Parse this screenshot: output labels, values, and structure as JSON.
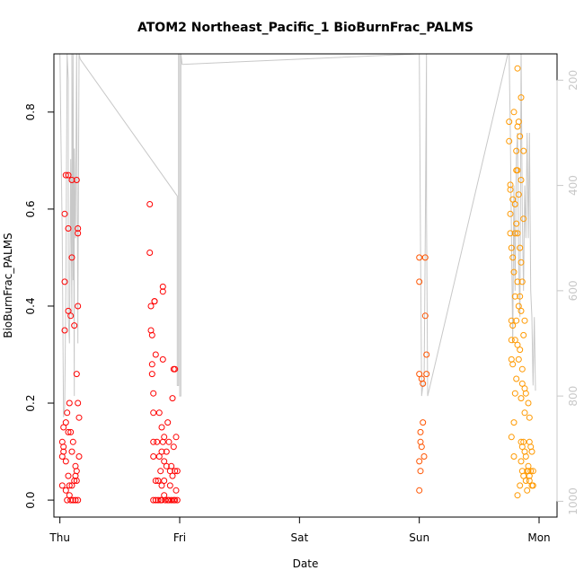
{
  "chart_data": {
    "type": "scatter",
    "title": "ATOM2 Northeast_Pacific_1 BioBurnFrac_PALMS",
    "xlabel": "Date",
    "ylabel": "BioBurnFrac_PALMS",
    "x_ticks": [
      "Thu",
      "Fri",
      "Sat",
      "Sun",
      "Mon"
    ],
    "xlim": [
      -0.05,
      4.15
    ],
    "ylim": [
      -0.035,
      0.92
    ],
    "y_ticks": [
      0.0,
      0.2,
      0.4,
      0.6,
      0.8
    ],
    "y2_ticks": [
      200,
      400,
      600,
      800,
      1000
    ],
    "y2_lim": [
      1030,
      150
    ],
    "y2_inverted": true,
    "grid": false,
    "colors": {
      "series_start": "#ff0000",
      "series_end": "#ff9900",
      "altitude_line": "#c8c8c8",
      "axis": "#000000"
    },
    "series": [
      {
        "points": [
          [
            0.02,
            0.09
          ],
          [
            0.02,
            0.03
          ],
          [
            0.02,
            0.12
          ],
          [
            0.03,
            0.15
          ],
          [
            0.03,
            0.1
          ],
          [
            0.03,
            0.11
          ],
          [
            0.04,
            0.35
          ],
          [
            0.04,
            0.45
          ],
          [
            0.04,
            0.59
          ],
          [
            0.05,
            0.67
          ],
          [
            0.05,
            0.16
          ],
          [
            0.05,
            0.08
          ],
          [
            0.05,
            0.02
          ],
          [
            0.06,
            0.18
          ],
          [
            0.06,
            0.0
          ],
          [
            0.07,
            0.67
          ],
          [
            0.07,
            0.56
          ],
          [
            0.07,
            0.39
          ],
          [
            0.07,
            0.14
          ],
          [
            0.07,
            0.05
          ],
          [
            0.08,
            0.2
          ],
          [
            0.08,
            0.03
          ],
          [
            0.08,
            0.01
          ],
          [
            0.09,
            0.38
          ],
          [
            0.09,
            0.14
          ],
          [
            0.09,
            0.0
          ],
          [
            0.1,
            0.66
          ],
          [
            0.1,
            0.5
          ],
          [
            0.1,
            0.1
          ],
          [
            0.1,
            0.03
          ],
          [
            0.11,
            0.12
          ],
          [
            0.11,
            0.0
          ],
          [
            0.12,
            0.04
          ],
          [
            0.12,
            0.36
          ],
          [
            0.13,
            0.07
          ],
          [
            0.13,
            0.0
          ],
          [
            0.13,
            0.05
          ],
          [
            0.14,
            0.26
          ],
          [
            0.14,
            0.66
          ],
          [
            0.14,
            0.06
          ],
          [
            0.14,
            0.04
          ],
          [
            0.15,
            0.4
          ],
          [
            0.15,
            0.55
          ],
          [
            0.15,
            0.2
          ],
          [
            0.15,
            0.0
          ],
          [
            0.15,
            0.56
          ],
          [
            0.16,
            0.17
          ],
          [
            0.16,
            0.09
          ],
          [
            0.75,
            0.61
          ],
          [
            0.75,
            0.51
          ],
          [
            0.76,
            0.4
          ],
          [
            0.76,
            0.35
          ],
          [
            0.77,
            0.34
          ],
          [
            0.77,
            0.28
          ],
          [
            0.77,
            0.26
          ],
          [
            0.78,
            0.22
          ],
          [
            0.78,
            0.18
          ],
          [
            0.78,
            0.12
          ],
          [
            0.78,
            0.09
          ],
          [
            0.78,
            0.0
          ],
          [
            0.79,
            0.41
          ],
          [
            0.79,
            0.41
          ],
          [
            0.8,
            0.3
          ],
          [
            0.8,
            0.04
          ],
          [
            0.8,
            0.0
          ],
          [
            0.81,
            0.12
          ],
          [
            0.82,
            0.04
          ],
          [
            0.82,
            0.0
          ],
          [
            0.83,
            0.18
          ],
          [
            0.83,
            0.09
          ],
          [
            0.84,
            0.06
          ],
          [
            0.84,
            0.0
          ],
          [
            0.85,
            0.15
          ],
          [
            0.85,
            0.1
          ],
          [
            0.85,
            0.03
          ],
          [
            0.85,
            0.0
          ],
          [
            0.86,
            0.44
          ],
          [
            0.86,
            0.43
          ],
          [
            0.86,
            0.29
          ],
          [
            0.86,
            0.12
          ],
          [
            0.87,
            0.13
          ],
          [
            0.87,
            0.08
          ],
          [
            0.87,
            0.04
          ],
          [
            0.87,
            0.01
          ],
          [
            0.88,
            0.0
          ],
          [
            0.89,
            0.1
          ],
          [
            0.89,
            0.07
          ],
          [
            0.9,
            0.0
          ],
          [
            0.9,
            0.16
          ],
          [
            0.91,
            0.12
          ],
          [
            0.91,
            0.0
          ],
          [
            0.92,
            0.06
          ],
          [
            0.92,
            0.03
          ],
          [
            0.93,
            0.07
          ],
          [
            0.93,
            0.0
          ],
          [
            0.94,
            0.21
          ],
          [
            0.94,
            0.05
          ],
          [
            0.95,
            0.27
          ],
          [
            0.95,
            0.0
          ],
          [
            0.95,
            0.11
          ],
          [
            0.96,
            0.27
          ],
          [
            0.96,
            0.06
          ],
          [
            0.96,
            0.0
          ],
          [
            0.97,
            0.13
          ],
          [
            0.97,
            0.02
          ],
          [
            0.98,
            0.06
          ],
          [
            0.98,
            0.0
          ],
          [
            3.0,
            0.5
          ],
          [
            3.0,
            0.45
          ],
          [
            3.0,
            0.26
          ],
          [
            3.0,
            0.08
          ],
          [
            3.0,
            0.02
          ],
          [
            3.01,
            0.14
          ],
          [
            3.01,
            0.12
          ],
          [
            3.01,
            0.06
          ],
          [
            3.02,
            0.25
          ],
          [
            3.02,
            0.11
          ],
          [
            3.03,
            0.24
          ],
          [
            3.03,
            0.16
          ],
          [
            3.04,
            0.09
          ],
          [
            3.05,
            0.5
          ],
          [
            3.05,
            0.38
          ],
          [
            3.06,
            0.3
          ],
          [
            3.06,
            0.26
          ],
          [
            3.75,
            0.78
          ],
          [
            3.75,
            0.74
          ],
          [
            3.76,
            0.65
          ],
          [
            3.76,
            0.64
          ],
          [
            3.76,
            0.59
          ],
          [
            3.76,
            0.55
          ],
          [
            3.77,
            0.52
          ],
          [
            3.77,
            0.37
          ],
          [
            3.77,
            0.33
          ],
          [
            3.77,
            0.29
          ],
          [
            3.77,
            0.13
          ],
          [
            3.78,
            0.62
          ],
          [
            3.78,
            0.5
          ],
          [
            3.78,
            0.36
          ],
          [
            3.78,
            0.28
          ],
          [
            3.79,
            0.8
          ],
          [
            3.79,
            0.47
          ],
          [
            3.79,
            0.16
          ],
          [
            3.79,
            0.09
          ],
          [
            3.8,
            0.61
          ],
          [
            3.8,
            0.55
          ],
          [
            3.8,
            0.42
          ],
          [
            3.8,
            0.33
          ],
          [
            3.8,
            0.22
          ],
          [
            3.81,
            0.72
          ],
          [
            3.81,
            0.68
          ],
          [
            3.81,
            0.57
          ],
          [
            3.81,
            0.37
          ],
          [
            3.81,
            0.25
          ],
          [
            3.82,
            0.89
          ],
          [
            3.82,
            0.77
          ],
          [
            3.82,
            0.68
          ],
          [
            3.82,
            0.55
          ],
          [
            3.82,
            0.45
          ],
          [
            3.82,
            0.32
          ],
          [
            3.82,
            0.01
          ],
          [
            3.83,
            0.78
          ],
          [
            3.83,
            0.63
          ],
          [
            3.83,
            0.4
          ],
          [
            3.83,
            0.29
          ],
          [
            3.84,
            0.75
          ],
          [
            3.84,
            0.52
          ],
          [
            3.84,
            0.42
          ],
          [
            3.84,
            0.31
          ],
          [
            3.84,
            0.03
          ],
          [
            3.85,
            0.83
          ],
          [
            3.85,
            0.66
          ],
          [
            3.85,
            0.49
          ],
          [
            3.85,
            0.39
          ],
          [
            3.85,
            0.21
          ],
          [
            3.85,
            0.12
          ],
          [
            3.85,
            0.08
          ],
          [
            3.86,
            0.45
          ],
          [
            3.86,
            0.27
          ],
          [
            3.86,
            0.24
          ],
          [
            3.86,
            0.11
          ],
          [
            3.86,
            0.06
          ],
          [
            3.87,
            0.72
          ],
          [
            3.87,
            0.58
          ],
          [
            3.87,
            0.34
          ],
          [
            3.87,
            0.12
          ],
          [
            3.87,
            0.05
          ],
          [
            3.88,
            0.37
          ],
          [
            3.88,
            0.23
          ],
          [
            3.88,
            0.18
          ],
          [
            3.88,
            0.1
          ],
          [
            3.89,
            0.22
          ],
          [
            3.89,
            0.09
          ],
          [
            3.89,
            0.04
          ],
          [
            3.9,
            0.06
          ],
          [
            3.9,
            0.02
          ],
          [
            3.91,
            0.2
          ],
          [
            3.91,
            0.07
          ],
          [
            3.91,
            0.06
          ],
          [
            3.92,
            0.17
          ],
          [
            3.92,
            0.12
          ],
          [
            3.92,
            0.05
          ],
          [
            3.92,
            0.04
          ],
          [
            3.93,
            0.11
          ],
          [
            3.93,
            0.06
          ],
          [
            3.94,
            0.1
          ],
          [
            3.94,
            0.03
          ],
          [
            3.95,
            0.06
          ],
          [
            3.95,
            0.03
          ]
        ]
      }
    ],
    "altitude_line": {
      "x": [
        0.0,
        0.01,
        0.01,
        0.02,
        0.03,
        0.04,
        0.05,
        0.06,
        0.07,
        0.07,
        0.08,
        0.09,
        0.1,
        0.1,
        0.11,
        0.11,
        0.12,
        0.12,
        0.13,
        0.14,
        0.15,
        0.15,
        0.16,
        0.17,
        0.98,
        0.98,
        0.99,
        0.99,
        1.0,
        1.0,
        1.01,
        1.01,
        1.02,
        3.0,
        3.01,
        3.02,
        3.03,
        3.04,
        3.05,
        3.05,
        3.06,
        3.06,
        3.07,
        3.74,
        3.75,
        3.76,
        3.77,
        3.78,
        3.79,
        3.8,
        3.81,
        3.82,
        3.83,
        3.84,
        3.85,
        3.86,
        3.87,
        3.88,
        3.89,
        3.9,
        3.91,
        3.92,
        3.93,
        3.94,
        3.95,
        3.96,
        3.97
      ],
      "alt": [
        100,
        330,
        330,
        500,
        840,
        820,
        600,
        100,
        200,
        650,
        700,
        350,
        650,
        100,
        580,
        100,
        800,
        330,
        500,
        100,
        700,
        650,
        100,
        160,
        420,
        780,
        780,
        100,
        100,
        800,
        800,
        100,
        170,
        100,
        500,
        800,
        780,
        780,
        500,
        500,
        100,
        450,
        800,
        150,
        100,
        300,
        500,
        700,
        400,
        600,
        350,
        300,
        550,
        650,
        100,
        450,
        600,
        400,
        500,
        300,
        500,
        300,
        600,
        650,
        780,
        650,
        790
      ]
    }
  }
}
